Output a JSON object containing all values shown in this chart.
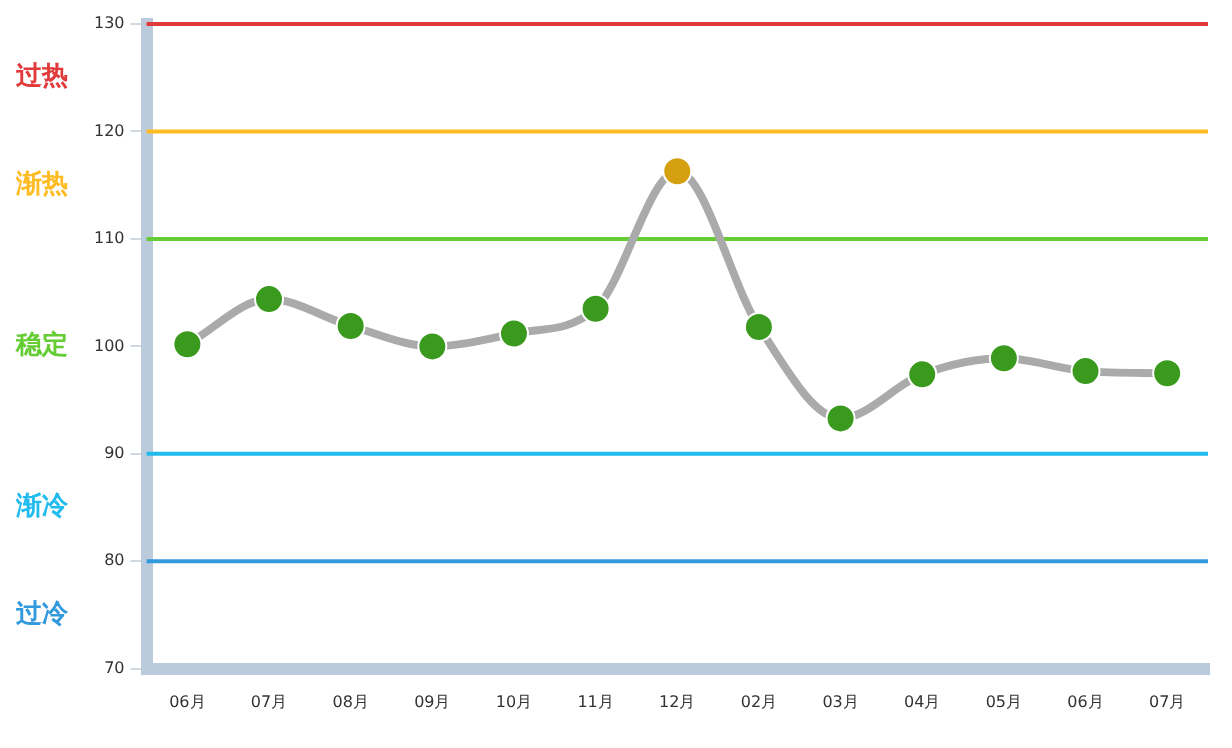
{
  "chart_data": {
    "type": "line",
    "categories": [
      "06月",
      "07月",
      "08月",
      "09月",
      "10月",
      "11月",
      "12月",
      "02月",
      "03月",
      "04月",
      "05月",
      "06月",
      "07月"
    ],
    "series": [
      {
        "color": "#aaaaaa",
        "colors": [
          "#3a9a1e",
          "#3a9a1e",
          "#3a9a1e",
          "#3a9a1e",
          "#3a9a1e",
          "#3a9a1e",
          "#d4a010",
          "#3a9a1e",
          "#3a9a1e",
          "#3a9a1e",
          "#3a9a1e",
          "#3a9a1e",
          "#3a9a1e"
        ],
        "values": [
          100.2,
          104.4,
          101.9,
          100,
          101.2,
          103.5,
          116.3,
          101.8,
          93.3,
          97.4,
          98.9,
          97.7,
          97.5
        ]
      }
    ],
    "ylim": [
      70,
      130
    ],
    "yticks": [
      70,
      80,
      90,
      100,
      110,
      120,
      130
    ],
    "grid": false,
    "legend": false,
    "marker": "circle",
    "line_style": "solid",
    "ref_lines": [
      {
        "axis": "y",
        "value": 130,
        "color": "#e03a3a"
      },
      {
        "axis": "y",
        "value": 120,
        "color": "#ffbb22"
      },
      {
        "axis": "y",
        "value": 110,
        "color": "#66cc33"
      },
      {
        "axis": "y",
        "value": 90,
        "color": "#22bbee"
      },
      {
        "axis": "y",
        "value": 80,
        "color": "#3399dd"
      }
    ],
    "annotations": [
      "过热",
      "渐热",
      "稳定",
      "渐冷",
      "过冷"
    ]
  }
}
